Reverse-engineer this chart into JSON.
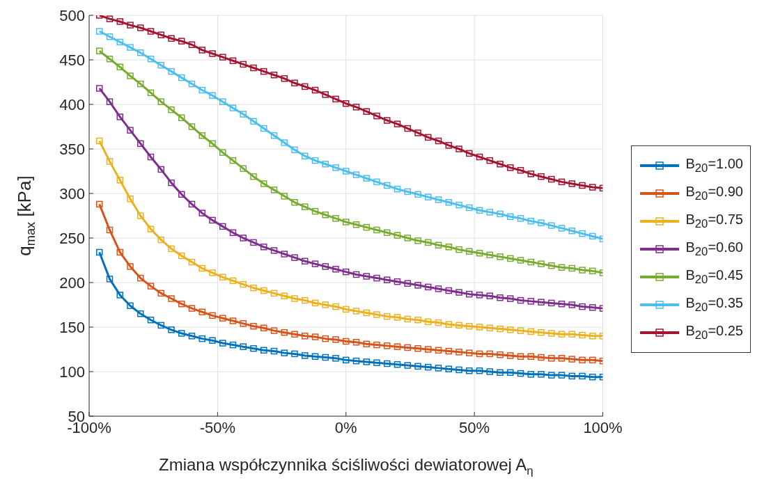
{
  "chart_data": {
    "type": "line",
    "xlabel": "Zmiana współczynnika ściśliwości dewiatorowej A$_{η}$",
    "ylabel": "q$_{max}$ [kPa]",
    "x": [
      -96,
      -92,
      -88,
      -84,
      -80,
      -76,
      -72,
      -68,
      -64,
      -60,
      -56,
      -52,
      -48,
      -44,
      -40,
      -36,
      -32,
      -28,
      -24,
      -20,
      -16,
      -12,
      -8,
      -4,
      0,
      4,
      8,
      12,
      16,
      20,
      24,
      28,
      32,
      36,
      40,
      44,
      48,
      52,
      56,
      60,
      64,
      68,
      72,
      76,
      80,
      84,
      88,
      92,
      96,
      100
    ],
    "xlim": [
      -100,
      100
    ],
    "xticks": [
      {
        "value": -100,
        "label": "-100%"
      },
      {
        "value": -50,
        "label": "-50%"
      },
      {
        "value": 0,
        "label": "0%"
      },
      {
        "value": 50,
        "label": "50%"
      },
      {
        "value": 100,
        "label": "100%"
      }
    ],
    "ylim": [
      50,
      500
    ],
    "yticks": [
      50,
      100,
      150,
      200,
      250,
      300,
      350,
      400,
      450,
      500
    ],
    "grid": true,
    "legend": "right",
    "marker": "square",
    "line_style": "solid",
    "series": [
      {
        "name": "B$_{20}$=1.00",
        "color": "#0072bd",
        "values": [
          234,
          204,
          186,
          174,
          165,
          158,
          152,
          147,
          143,
          140,
          137,
          135,
          132,
          130,
          128,
          126,
          124,
          123,
          121,
          120,
          118,
          117,
          116,
          115,
          113,
          112,
          111,
          110,
          109,
          108,
          107,
          106,
          105,
          104,
          103,
          102,
          101,
          101,
          100,
          99,
          99,
          98,
          97,
          97,
          96,
          96,
          95,
          95,
          94,
          94
        ]
      },
      {
        "name": "B$_{20}$=0.90",
        "color": "#d95319",
        "values": [
          288,
          259,
          234,
          218,
          205,
          196,
          188,
          182,
          176,
          171,
          167,
          163,
          160,
          157,
          154,
          151,
          149,
          146,
          144,
          142,
          140,
          139,
          137,
          136,
          134,
          133,
          131,
          130,
          129,
          128,
          127,
          126,
          125,
          124,
          123,
          122,
          121,
          120,
          120,
          119,
          118,
          117,
          117,
          116,
          115,
          115,
          114,
          113,
          113,
          112
        ]
      },
      {
        "name": "B$_{20}$=0.75",
        "color": "#edb120",
        "values": [
          359,
          336,
          315,
          294,
          275,
          260,
          248,
          238,
          230,
          223,
          216,
          211,
          206,
          202,
          198,
          194,
          191,
          188,
          185,
          182,
          180,
          177,
          175,
          173,
          170,
          168,
          166,
          164,
          162,
          161,
          159,
          158,
          156,
          155,
          153,
          152,
          151,
          150,
          149,
          148,
          147,
          146,
          145,
          144,
          143,
          142,
          142,
          141,
          140,
          140
        ]
      },
      {
        "name": "B$_{20}$=0.60",
        "color": "#7e2f8e",
        "values": [
          418,
          403,
          386,
          371,
          356,
          341,
          327,
          312,
          299,
          288,
          278,
          270,
          263,
          256,
          250,
          245,
          240,
          236,
          232,
          228,
          224,
          221,
          218,
          215,
          212,
          209,
          207,
          205,
          203,
          201,
          199,
          197,
          195,
          193,
          191,
          189,
          187,
          186,
          185,
          183,
          182,
          180,
          179,
          178,
          177,
          176,
          175,
          173,
          172,
          171
        ]
      },
      {
        "name": "B$_{20}$=0.45",
        "color": "#77ac30",
        "values": [
          460,
          451,
          442,
          432,
          423,
          413,
          403,
          394,
          385,
          375,
          365,
          356,
          346,
          337,
          328,
          319,
          311,
          304,
          297,
          290,
          285,
          280,
          276,
          272,
          268,
          265,
          262,
          259,
          256,
          253,
          250,
          247,
          245,
          242,
          240,
          237,
          235,
          233,
          231,
          229,
          227,
          225,
          223,
          221,
          219,
          217,
          216,
          214,
          213,
          211
        ]
      },
      {
        "name": "B$_{20}$=0.35",
        "color": "#4dbeee",
        "values": [
          482,
          476,
          470,
          464,
          458,
          451,
          444,
          437,
          430,
          423,
          416,
          410,
          403,
          396,
          389,
          381,
          373,
          365,
          357,
          349,
          342,
          337,
          333,
          329,
          325,
          321,
          317,
          313,
          309,
          305,
          302,
          299,
          296,
          293,
          290,
          287,
          284,
          281,
          279,
          277,
          274,
          272,
          269,
          267,
          264,
          261,
          258,
          255,
          252,
          249
        ]
      },
      {
        "name": "B$_{20}$=0.25",
        "color": "#a2142f",
        "values": [
          500,
          496,
          493,
          489,
          486,
          482,
          478,
          474,
          471,
          467,
          461,
          457,
          453,
          449,
          445,
          441,
          437,
          433,
          429,
          424,
          420,
          416,
          411,
          406,
          401,
          397,
          392,
          387,
          382,
          378,
          373,
          368,
          363,
          359,
          354,
          350,
          345,
          341,
          337,
          333,
          329,
          326,
          322,
          319,
          316,
          313,
          311,
          309,
          307,
          306
        ]
      }
    ]
  }
}
